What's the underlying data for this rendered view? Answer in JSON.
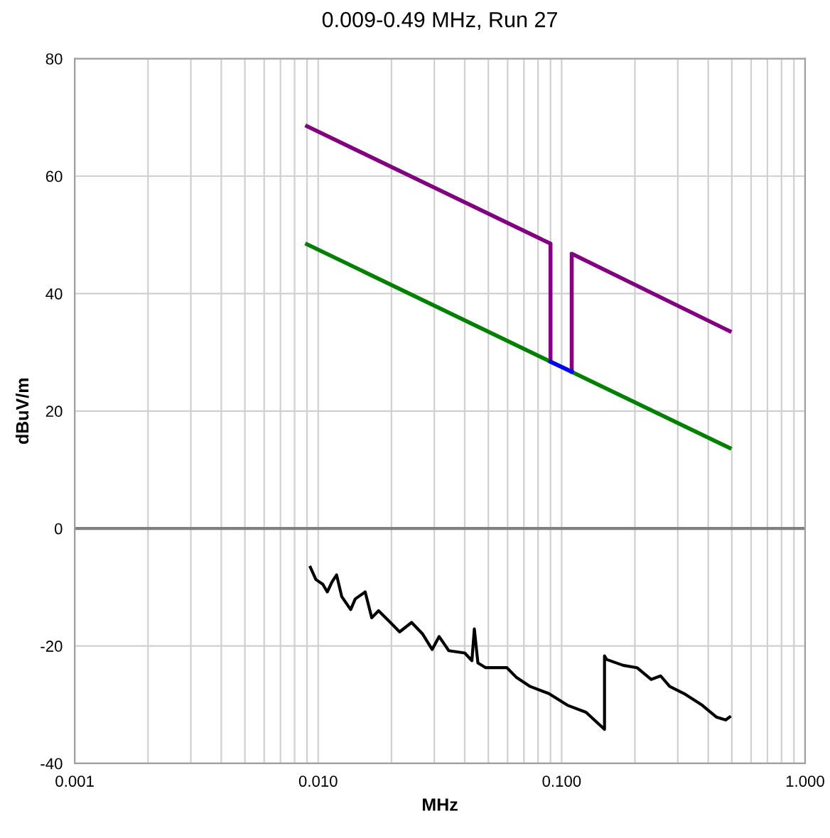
{
  "chart_data": {
    "type": "line",
    "title": "0.009-0.49 MHz, Run 27",
    "xlabel": "MHz",
    "ylabel": "dBuV/m",
    "log": "x",
    "grid": true,
    "legend": false,
    "marker": "none",
    "xlim": [
      0.001,
      1.0
    ],
    "ylim": [
      -40,
      80
    ],
    "xticks": [
      {
        "value": 0.001,
        "label": "0.001"
      },
      {
        "value": 0.002,
        "label": null
      },
      {
        "value": 0.003,
        "label": null
      },
      {
        "value": 0.004,
        "label": null
      },
      {
        "value": 0.005,
        "label": null
      },
      {
        "value": 0.006,
        "label": null
      },
      {
        "value": 0.007,
        "label": null
      },
      {
        "value": 0.008,
        "label": null
      },
      {
        "value": 0.009,
        "label": null
      },
      {
        "value": 0.01,
        "label": "0.010"
      },
      {
        "value": 0.02,
        "label": null
      },
      {
        "value": 0.03,
        "label": null
      },
      {
        "value": 0.04,
        "label": null
      },
      {
        "value": 0.05,
        "label": null
      },
      {
        "value": 0.06,
        "label": null
      },
      {
        "value": 0.07,
        "label": null
      },
      {
        "value": 0.08,
        "label": null
      },
      {
        "value": 0.09,
        "label": null
      },
      {
        "value": 0.1,
        "label": "0.100"
      },
      {
        "value": 0.2,
        "label": null
      },
      {
        "value": 0.3,
        "label": null
      },
      {
        "value": 0.4,
        "label": null
      },
      {
        "value": 0.5,
        "label": null
      },
      {
        "value": 0.6,
        "label": null
      },
      {
        "value": 0.7,
        "label": null
      },
      {
        "value": 0.8,
        "label": null
      },
      {
        "value": 0.9,
        "label": null
      },
      {
        "value": 1.0,
        "label": "1.000"
      }
    ],
    "yticks": [
      -40,
      -20,
      0,
      20,
      40,
      60,
      80
    ],
    "ref_lines": [
      {
        "axis": "y",
        "value": 0,
        "color": "#808080"
      }
    ],
    "series": [
      {
        "color": "#800080",
        "x": [
          0.009,
          0.09,
          0.09,
          0.1,
          0.11,
          0.11,
          0.49
        ],
        "values": [
          68.5,
          48.5,
          28.5,
          null,
          26.7,
          46.8,
          33.6
        ]
      },
      {
        "color": "#008000",
        "x": [
          0.009,
          0.49
        ],
        "values": [
          48.4,
          13.7
        ]
      },
      {
        "color": "#0000ff",
        "x": [
          0.09,
          0.11
        ],
        "values": [
          28.4,
          26.7
        ]
      },
      {
        "color": "#000000",
        "x": [
          0.00929,
          0.00979,
          0.01045,
          0.0109,
          0.0114,
          0.0119,
          0.0125,
          0.0136,
          0.0142,
          0.0156,
          0.0166,
          0.0177,
          0.0198,
          0.0216,
          0.0242,
          0.0269,
          0.0294,
          0.0314,
          0.0344,
          0.04,
          0.0428,
          0.0438,
          0.0453,
          0.0488,
          0.0596,
          0.065,
          0.0743,
          0.0885,
          0.1057,
          0.126,
          0.15,
          0.15,
          0.153,
          0.179,
          0.204,
          0.233,
          0.255,
          0.278,
          0.318,
          0.378,
          0.432,
          0.472,
          0.49
        ],
        "values": [
          -6.6,
          -8.7,
          -9.5,
          -10.8,
          -9.1,
          -7.9,
          -11.6,
          -13.8,
          -12.0,
          -10.8,
          -15.2,
          -14.0,
          -16.0,
          -17.6,
          -16.0,
          -18.0,
          -20.6,
          -18.4,
          -20.8,
          -21.2,
          -22.5,
          -17.1,
          -22.9,
          -23.7,
          -23.7,
          -25.3,
          -26.9,
          -28.1,
          -30.1,
          -31.3,
          -34.2,
          -21.7,
          -22.3,
          -23.3,
          -23.7,
          -25.7,
          -25.1,
          -26.9,
          -28.1,
          -30.1,
          -32.1,
          -32.6,
          -32.1
        ]
      }
    ]
  }
}
